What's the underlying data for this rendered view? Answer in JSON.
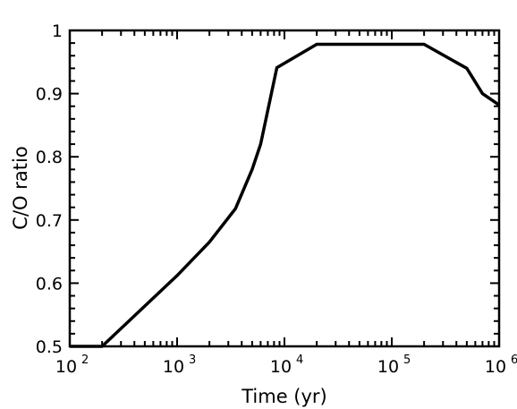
{
  "chart_data": {
    "type": "line",
    "title": "",
    "xlabel": "Time (yr)",
    "ylabel": "C/O ratio",
    "xscale": "log",
    "xlim": [
      100,
      1000000
    ],
    "ylim": [
      0.5,
      1.0
    ],
    "x_ticks": [
      {
        "base": "10",
        "exp": "2"
      },
      {
        "base": "10",
        "exp": "3"
      },
      {
        "base": "10",
        "exp": "4"
      },
      {
        "base": "10",
        "exp": "5"
      },
      {
        "base": "10",
        "exp": "6"
      }
    ],
    "y_ticks": [
      "0.5",
      "0.6",
      "0.7",
      "0.8",
      "0.9",
      "1"
    ],
    "grid": false,
    "line_color": "#000000",
    "series": [
      {
        "x": [
          100,
          200,
          1000,
          2000,
          3500,
          5000,
          6000,
          8500,
          20000,
          100000,
          200000,
          500000,
          700000,
          1000000
        ],
        "y": [
          0.5,
          0.5,
          0.612,
          0.665,
          0.718,
          0.78,
          0.82,
          0.941,
          0.978,
          0.978,
          0.978,
          0.94,
          0.9,
          0.882
        ]
      }
    ]
  }
}
